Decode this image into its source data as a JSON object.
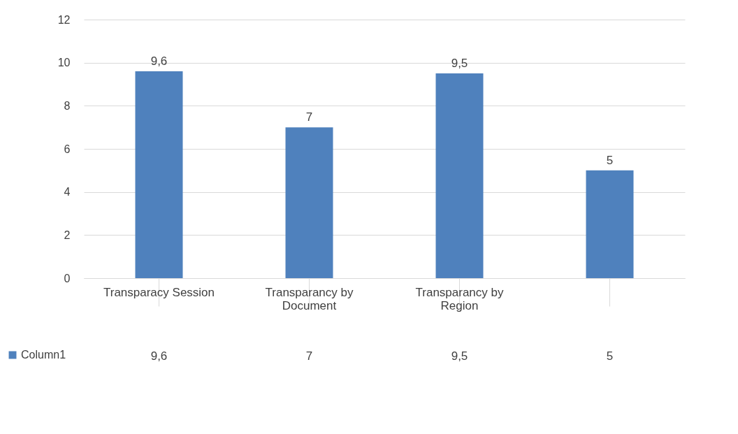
{
  "chart_data": {
    "type": "bar",
    "categories": [
      "Transparacy Session",
      "Transparancy by Document",
      "Transparancy by Region",
      null
    ],
    "series": [
      {
        "name": "Column1",
        "color": "#4f81bd",
        "values": [
          9.6,
          7,
          9.5,
          5
        ],
        "value_labels": [
          "9,6",
          "7",
          "9,5",
          "5"
        ]
      }
    ],
    "ylim": [
      0,
      12
    ],
    "yticks": [
      0,
      2,
      4,
      6,
      8,
      10,
      12
    ],
    "grid": "y",
    "legend": "bottom left"
  }
}
